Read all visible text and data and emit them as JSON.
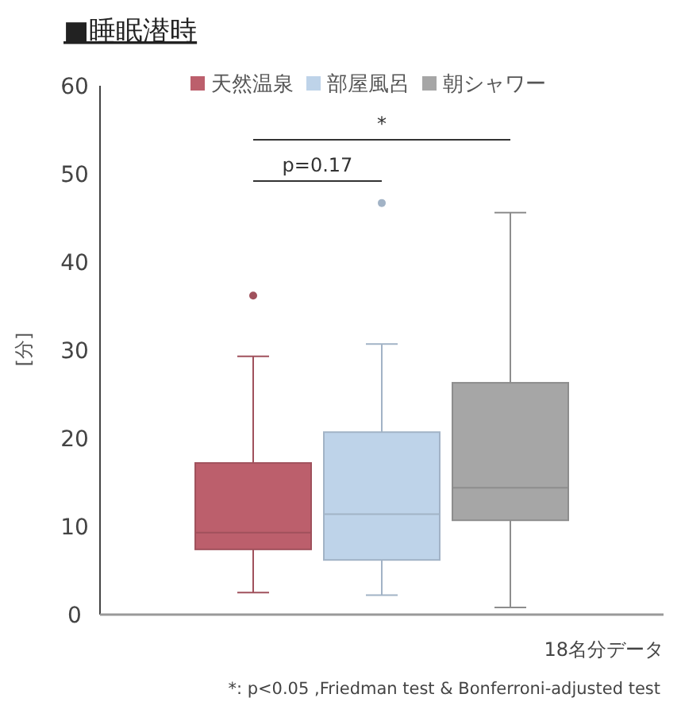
{
  "chart_data": {
    "type": "box",
    "title": "■睡眠潜時",
    "ylabel": "[分]",
    "categories": [
      null
    ],
    "series": [
      {
        "name": "天然温泉",
        "color": "#bc5f6c",
        "boxes": [
          {
            "low": 2.5,
            "q1": 7.4,
            "median": 9.3,
            "q3": 17.2,
            "high": 29.3,
            "outliers": [
              36.2
            ]
          }
        ]
      },
      {
        "name": "部屋風呂",
        "color": "#bed3e9",
        "boxes": [
          {
            "low": 2.2,
            "q1": 6.2,
            "median": 11.4,
            "q3": 20.7,
            "high": 30.7,
            "outliers": [
              46.7
            ]
          }
        ]
      },
      {
        "name": "朝シャワー",
        "color": "#a6a6a6",
        "boxes": [
          {
            "low": 0.8,
            "q1": 10.7,
            "median": 14.4,
            "q3": 26.3,
            "high": 45.6
          }
        ]
      }
    ],
    "ylim": [
      0,
      60
    ],
    "yticks": [
      0,
      10,
      20,
      30,
      40,
      50,
      60
    ],
    "grid": false,
    "legend": "top",
    "annotations": [
      "p=0.17",
      "*",
      "18名分データ",
      "*: p<0.05 ,Friedman test & Bonferroni-adjusted test"
    ]
  }
}
